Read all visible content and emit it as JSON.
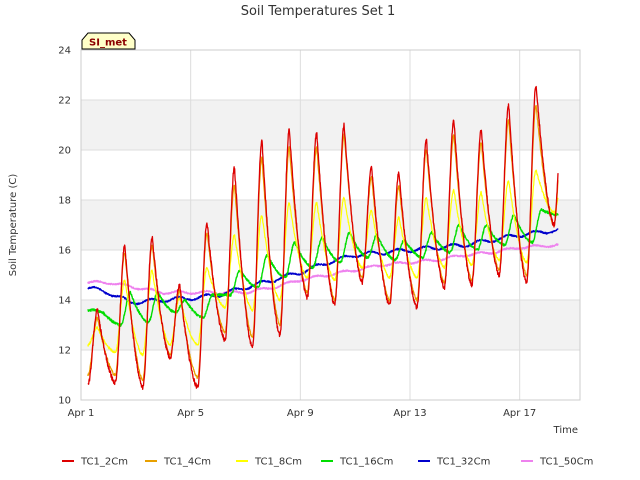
{
  "chart_data": {
    "type": "line",
    "title": "Soil Temperatures Set 1",
    "xlabel": "Time",
    "ylabel": "Soil Temperature (C)",
    "site_tag": "SI_met",
    "x_unit": "day of April",
    "xlim": [
      1,
      19.2
    ],
    "ylim": [
      10,
      24
    ],
    "x_ticks": [
      {
        "value": 1,
        "label": "Apr 1"
      },
      {
        "value": 5,
        "label": "Apr 5"
      },
      {
        "value": 9,
        "label": "Apr 9"
      },
      {
        "value": 13,
        "label": "Apr 13"
      },
      {
        "value": 17,
        "label": "Apr 17"
      }
    ],
    "y_ticks": [
      10,
      12,
      14,
      16,
      18,
      20,
      22,
      24
    ],
    "grid": true,
    "banded_background": true,
    "legend_position": "bottom",
    "series": [
      {
        "name": "TC1_2Cm",
        "color": "#dd0000",
        "width": 1.3,
        "x_start": 1.25,
        "x_end": 18.4,
        "day_peaks": [
          13.6,
          16.2,
          16.5,
          14.6,
          17.1,
          19.3,
          20.4,
          20.8,
          20.7,
          21.0,
          19.3,
          19.1,
          20.4,
          21.2,
          20.8,
          21.8,
          22.6
        ],
        "night_mins": [
          10.6,
          10.7,
          10.5,
          11.7,
          10.5,
          12.4,
          12.1,
          12.6,
          14.1,
          13.8,
          14.7,
          13.8,
          13.7,
          14.5,
          14.6,
          15.0,
          14.7,
          17.0
        ]
      },
      {
        "name": "TC1_4Cm",
        "color": "#e8a000",
        "width": 1.2,
        "x_start": 1.25,
        "x_end": 18.4,
        "day_peaks": [
          13.3,
          15.9,
          16.2,
          14.4,
          16.7,
          18.6,
          19.7,
          20.1,
          20.1,
          20.6,
          18.9,
          18.6,
          20.0,
          20.6,
          20.3,
          21.2,
          21.8
        ],
        "night_mins": [
          11.0,
          11.0,
          10.8,
          11.8,
          10.9,
          12.7,
          12.5,
          13.0,
          14.3,
          14.0,
          14.9,
          14.0,
          14.0,
          14.7,
          14.8,
          15.2,
          15.0,
          17.0
        ]
      },
      {
        "name": "TC1_8Cm",
        "color": "#ffff00",
        "width": 1.2,
        "x_start": 1.25,
        "x_end": 18.4,
        "day_peaks": [
          12.9,
          14.8,
          15.2,
          14.1,
          15.3,
          16.6,
          17.4,
          17.9,
          17.9,
          18.1,
          17.6,
          17.3,
          18.1,
          18.4,
          18.3,
          18.8,
          19.2
        ],
        "night_mins": [
          12.2,
          11.9,
          11.8,
          12.2,
          12.2,
          13.7,
          13.6,
          14.0,
          14.9,
          14.8,
          15.3,
          14.9,
          14.9,
          15.3,
          15.4,
          15.6,
          15.5,
          17.5
        ]
      },
      {
        "name": "TC1_16Cm",
        "color": "#00dd00",
        "width": 1.4,
        "x_start": 1.25,
        "x_end": 18.4,
        "phase_lag": 0.2,
        "day_peaks": [
          13.5,
          14.3,
          14.3,
          14.0,
          14.2,
          15.2,
          15.8,
          16.3,
          16.5,
          16.7,
          16.6,
          16.4,
          16.7,
          17.0,
          17.0,
          17.4,
          17.6
        ],
        "night_mins": [
          13.6,
          13.0,
          13.1,
          13.5,
          13.3,
          14.2,
          14.5,
          14.9,
          15.3,
          15.5,
          15.7,
          15.6,
          15.7,
          15.9,
          16.0,
          16.2,
          16.3,
          17.4
        ]
      },
      {
        "name": "TC1_32Cm",
        "color": "#0000cc",
        "width": 1.4,
        "x_start": 1.25,
        "x_end": 18.4,
        "trend": [
          [
            1.25,
            14.5
          ],
          [
            2.0,
            14.3
          ],
          [
            2.8,
            13.9
          ],
          [
            4.0,
            14.0
          ],
          [
            5.3,
            14.1
          ],
          [
            6.0,
            14.2
          ],
          [
            7.0,
            14.5
          ],
          [
            8.0,
            14.8
          ],
          [
            9.0,
            15.1
          ],
          [
            10.0,
            15.5
          ],
          [
            11.0,
            15.8
          ],
          [
            12.0,
            15.9
          ],
          [
            13.0,
            16.0
          ],
          [
            14.0,
            16.1
          ],
          [
            15.0,
            16.2
          ],
          [
            16.0,
            16.4
          ],
          [
            17.0,
            16.6
          ],
          [
            18.4,
            16.8
          ]
        ],
        "ripple": 0.08
      },
      {
        "name": "TC1_50Cm",
        "color": "#ee82ee",
        "width": 1.4,
        "x_start": 1.25,
        "x_end": 18.4,
        "trend": [
          [
            1.25,
            14.7
          ],
          [
            2.0,
            14.7
          ],
          [
            3.0,
            14.5
          ],
          [
            4.0,
            14.3
          ],
          [
            5.0,
            14.3
          ],
          [
            6.0,
            14.3
          ],
          [
            7.0,
            14.3
          ],
          [
            8.0,
            14.5
          ],
          [
            9.0,
            14.8
          ],
          [
            10.0,
            15.0
          ],
          [
            11.0,
            15.2
          ],
          [
            12.0,
            15.4
          ],
          [
            13.0,
            15.5
          ],
          [
            14.0,
            15.6
          ],
          [
            15.0,
            15.8
          ],
          [
            16.0,
            15.9
          ],
          [
            17.0,
            16.1
          ],
          [
            18.4,
            16.2
          ]
        ],
        "ripple": 0.05
      }
    ]
  }
}
